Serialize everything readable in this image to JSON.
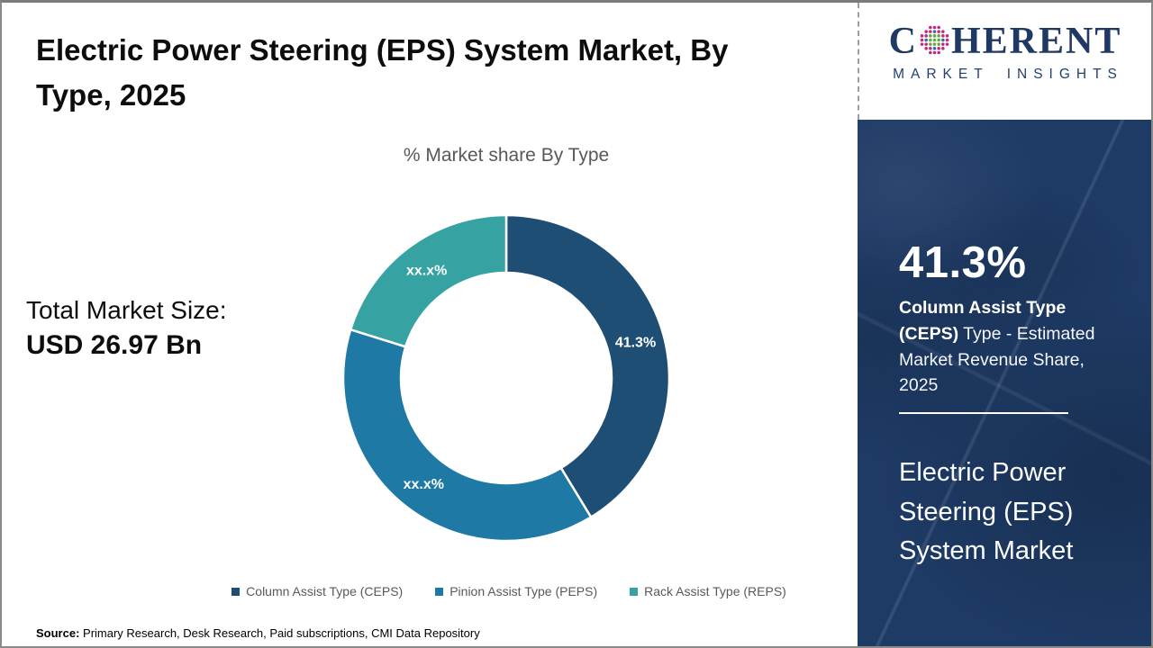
{
  "page": {
    "title": "Electric Power Steering (EPS) System Market, By Type, 2025",
    "source_label": "Source:",
    "source_text": " Primary Research, Desk Research, Paid subscriptions, CMI Data Repository"
  },
  "logo": {
    "word_start": "C",
    "word_end": "HERENT",
    "subtitle": "MARKET INSIGHTS",
    "navy": "#1f3864",
    "globe_colors": {
      "center": "#69a83f",
      "mid_blue": "#2e6da8",
      "mid_teal": "#2fa6ad",
      "outer": "#c02b7e"
    }
  },
  "main": {
    "chart_subtitle": "% Market share By Type",
    "total_label": "Total Market Size:",
    "total_value": "USD 26.97 Bn"
  },
  "sidebar": {
    "stat_value": "41.3%",
    "stat_bold": "Column Assist Type (CEPS)",
    "stat_rest": " Type - Estimated Market Revenue Share, 2025",
    "market_title": "Electric Power Steering (EPS) System Market"
  },
  "chart_data": {
    "type": "pie",
    "donut": true,
    "title": "% Market share By Type",
    "start_angle_deg": 0,
    "direction": "clockwise",
    "legend_position": "bottom",
    "segments": [
      {
        "name": "Column Assist Type (CEPS)",
        "value": 41.3,
        "label": "41.3%",
        "color": "#1f4e74"
      },
      {
        "name": "Pinion Assist Type (PEPS)",
        "value": 38.5,
        "label": "xx.x%",
        "color": "#1f79a5"
      },
      {
        "name": "Rack Assist Type (REPS)",
        "value": 20.2,
        "label": "xx.x%",
        "color": "#37a2a2"
      }
    ]
  }
}
